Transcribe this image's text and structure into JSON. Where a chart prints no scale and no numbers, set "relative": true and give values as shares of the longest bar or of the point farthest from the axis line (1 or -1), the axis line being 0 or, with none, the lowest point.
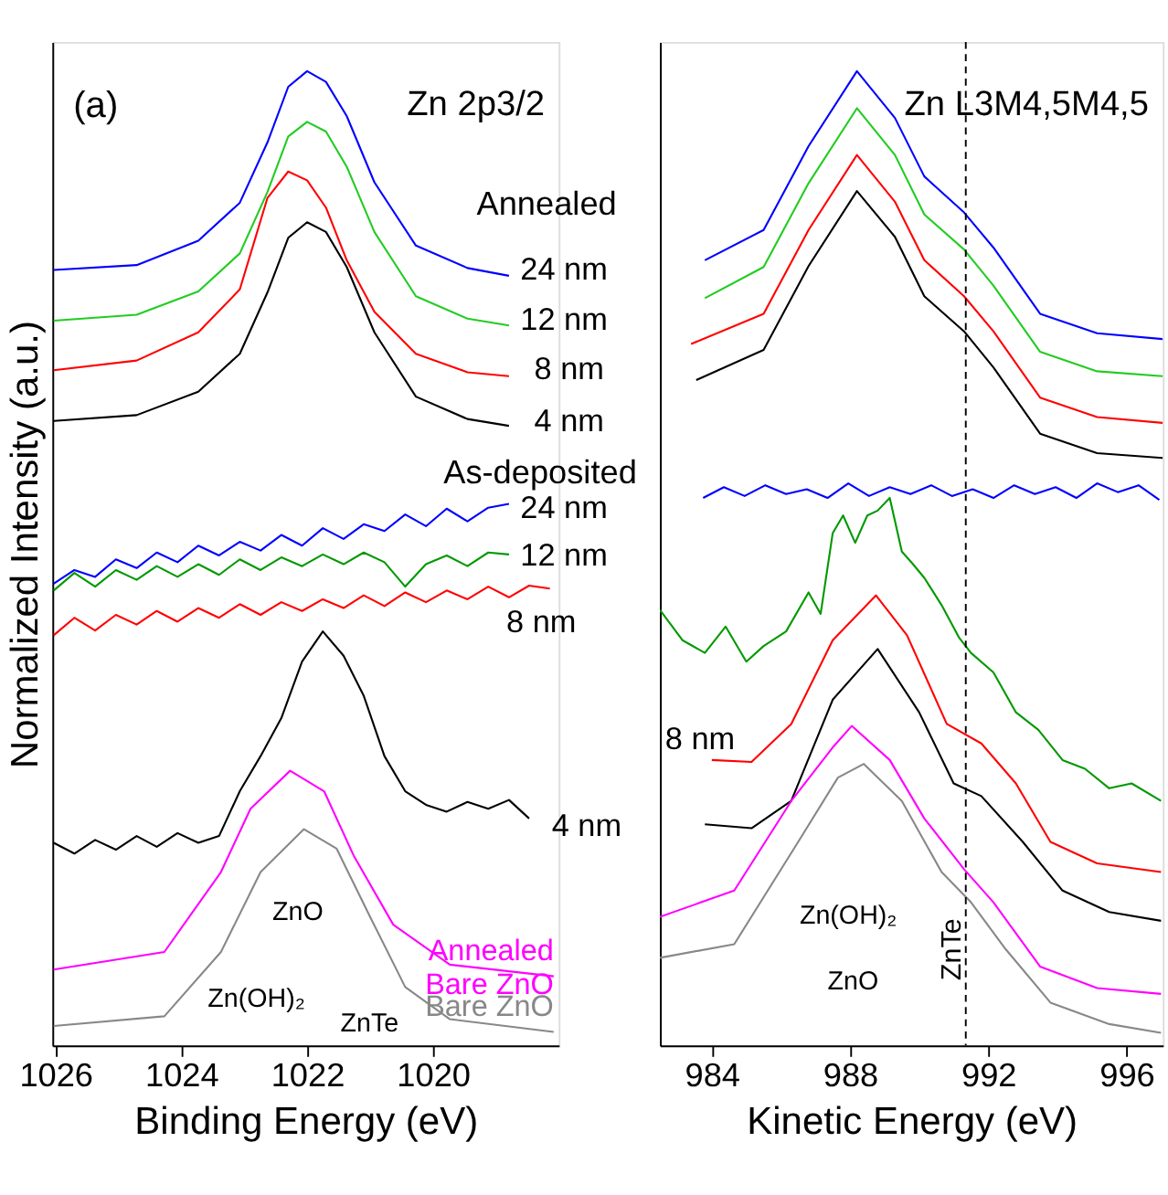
{
  "chart_data": [
    {
      "type": "line",
      "relative": true,
      "title": "Zn 2p3/2",
      "xlabel": "Binding Energy (eV)",
      "ylabel": "Normalized Intensity (a.u.)",
      "xlim": [
        1026.05,
        1018.0
      ],
      "xticks": [
        1026,
        1024,
        1022,
        1020
      ],
      "series": [
        {
          "color": "#0000ff",
          "x": [
            1026.03,
            1024.71,
            1023.73,
            1023.07,
            1022.63,
            1022.3,
            1022.0,
            1021.7,
            1021.37,
            1020.93,
            1020.27,
            1019.45,
            1018.79
          ],
          "values": [
            0.796,
            0.801,
            0.826,
            0.865,
            0.927,
            0.984,
            1.0,
            0.989,
            0.954,
            0.886,
            0.821,
            0.798,
            0.79
          ]
        },
        {
          "color": "#22cc22",
          "x": [
            1026.03,
            1024.71,
            1023.73,
            1023.07,
            1022.63,
            1022.3,
            1022.0,
            1021.7,
            1021.37,
            1020.93,
            1020.27,
            1019.45,
            1018.79
          ],
          "values": [
            0.744,
            0.75,
            0.774,
            0.813,
            0.876,
            0.933,
            0.948,
            0.938,
            0.902,
            0.835,
            0.769,
            0.746,
            0.739
          ]
        },
        {
          "color": "#ff0000",
          "x": [
            1026.03,
            1024.71,
            1023.73,
            1023.07,
            1022.63,
            1022.3,
            1022.0,
            1021.7,
            1021.37,
            1020.93,
            1020.27,
            1019.45,
            1018.79
          ],
          "values": [
            0.693,
            0.703,
            0.732,
            0.776,
            0.87,
            0.897,
            0.888,
            0.86,
            0.806,
            0.753,
            0.71,
            0.691,
            0.687
          ]
        },
        {
          "color": "#000000",
          "x": [
            1026.03,
            1024.71,
            1023.73,
            1023.07,
            1022.63,
            1022.3,
            1022.0,
            1021.7,
            1021.37,
            1020.93,
            1020.27,
            1019.45,
            1018.79
          ],
          "values": [
            0.641,
            0.647,
            0.671,
            0.71,
            0.773,
            0.829,
            0.845,
            0.835,
            0.799,
            0.732,
            0.666,
            0.643,
            0.636
          ]
        },
        {
          "color": "#0000ff",
          "x": [
            1026.03,
            1025.7,
            1025.37,
            1025.04,
            1024.71,
            1024.39,
            1024.06,
            1023.73,
            1023.4,
            1023.07,
            1022.74,
            1022.41,
            1022.08,
            1021.75,
            1021.42,
            1021.1,
            1020.77,
            1020.44,
            1020.11,
            1019.78,
            1019.45,
            1019.12,
            1018.79
          ],
          "values": [
            0.474,
            0.488,
            0.481,
            0.499,
            0.49,
            0.506,
            0.496,
            0.513,
            0.503,
            0.517,
            0.508,
            0.524,
            0.513,
            0.531,
            0.52,
            0.535,
            0.528,
            0.545,
            0.533,
            0.551,
            0.538,
            0.552,
            0.556
          ]
        },
        {
          "color": "#009900",
          "x": [
            1026.03,
            1025.7,
            1025.37,
            1025.04,
            1024.71,
            1024.39,
            1024.06,
            1023.73,
            1023.4,
            1023.07,
            1022.74,
            1022.41,
            1022.08,
            1021.75,
            1021.42,
            1021.1,
            1020.77,
            1020.44,
            1020.11,
            1019.78,
            1019.45,
            1019.12,
            1018.79
          ],
          "values": [
            0.467,
            0.485,
            0.471,
            0.488,
            0.478,
            0.492,
            0.481,
            0.494,
            0.483,
            0.499,
            0.488,
            0.501,
            0.492,
            0.504,
            0.494,
            0.506,
            0.496,
            0.471,
            0.494,
            0.503,
            0.492,
            0.506,
            0.504
          ]
        },
        {
          "color": "#ff0000",
          "x": [
            1026.03,
            1025.7,
            1025.37,
            1025.04,
            1024.71,
            1024.39,
            1024.06,
            1023.73,
            1023.4,
            1023.07,
            1022.74,
            1022.41,
            1022.08,
            1021.75,
            1021.42,
            1021.1,
            1020.77,
            1020.44,
            1020.11,
            1019.78,
            1019.45,
            1019.12,
            1018.79,
            1018.47,
            1018.14
          ],
          "values": [
            0.421,
            0.439,
            0.426,
            0.442,
            0.432,
            0.446,
            0.435,
            0.449,
            0.439,
            0.453,
            0.442,
            0.455,
            0.446,
            0.458,
            0.449,
            0.462,
            0.451,
            0.465,
            0.455,
            0.467,
            0.458,
            0.471,
            0.46,
            0.472,
            0.469
          ]
        },
        {
          "color": "#000000",
          "x": [
            1026.03,
            1025.7,
            1025.37,
            1025.04,
            1024.71,
            1024.39,
            1024.06,
            1023.73,
            1023.4,
            1023.07,
            1022.74,
            1022.41,
            1022.08,
            1021.75,
            1021.42,
            1021.1,
            1020.77,
            1020.44,
            1020.11,
            1019.78,
            1019.45,
            1019.12,
            1018.79,
            1018.47
          ],
          "values": [
            0.208,
            0.197,
            0.211,
            0.201,
            0.215,
            0.204,
            0.218,
            0.208,
            0.215,
            0.261,
            0.297,
            0.336,
            0.394,
            0.425,
            0.4,
            0.359,
            0.297,
            0.261,
            0.247,
            0.24,
            0.25,
            0.243,
            0.252,
            0.233
          ]
        },
        {
          "name": "Annealed\nBare ZnO",
          "color": "#ff00ff",
          "x": [
            1026.03,
            1024.27,
            1023.37,
            1022.9,
            1022.27,
            1021.73,
            1021.26,
            1020.63,
            1019.73,
            1018.08
          ],
          "values": [
            0.078,
            0.096,
            0.178,
            0.243,
            0.282,
            0.261,
            0.195,
            0.124,
            0.083,
            0.071
          ]
        },
        {
          "name": "Bare ZnO",
          "color": "#888888",
          "x": [
            1026.03,
            1024.27,
            1023.37,
            1022.74,
            1022.05,
            1021.53,
            1020.99,
            1020.44,
            1019.73,
            1018.08
          ],
          "values": [
            0.02,
            0.03,
            0.096,
            0.178,
            0.222,
            0.202,
            0.131,
            0.06,
            0.027,
            0.014
          ]
        }
      ],
      "annotations": [
        "(a)",
        "Annealed",
        "24 nm",
        "12 nm",
        "8 nm",
        "4 nm",
        "As-deposited",
        "24 nm",
        "12 nm",
        "8 nm",
        "4 nm",
        "ZnO",
        "Zn(OH)₂",
        "ZnTe"
      ]
    },
    {
      "type": "line",
      "relative": true,
      "title": "Zn L3M4,5M4,5",
      "xlabel": "Kinetic Energy (eV)",
      "xlim": [
        982.5,
        997.05
      ],
      "xticks": [
        984,
        988,
        992,
        996
      ],
      "series": [
        {
          "color": "#0000ff",
          "x": [
            983.8,
            985.5,
            986.8,
            988.2,
            989.3,
            990.15,
            991.3,
            992.15,
            993.5,
            995.15,
            997.05
          ],
          "values": [
            0.806,
            0.837,
            0.923,
            1.0,
            0.952,
            0.892,
            0.855,
            0.819,
            0.751,
            0.731,
            0.725
          ]
        },
        {
          "color": "#22cc22",
          "x": [
            983.8,
            985.5,
            986.8,
            988.2,
            989.3,
            990.15,
            991.3,
            992.15,
            993.5,
            995.15,
            997.05
          ],
          "values": [
            0.767,
            0.799,
            0.885,
            0.962,
            0.914,
            0.853,
            0.817,
            0.78,
            0.712,
            0.692,
            0.687
          ]
        },
        {
          "color": "#ff0000",
          "x": [
            983.4,
            985.5,
            986.8,
            988.2,
            989.3,
            990.15,
            991.3,
            992.15,
            993.5,
            995.15,
            997.05
          ],
          "values": [
            0.72,
            0.751,
            0.837,
            0.914,
            0.866,
            0.806,
            0.769,
            0.733,
            0.665,
            0.645,
            0.639
          ]
        },
        {
          "color": "#000000",
          "x": [
            983.55,
            985.5,
            986.8,
            988.2,
            989.3,
            990.15,
            991.3,
            992.15,
            993.5,
            995.15,
            997.05
          ],
          "values": [
            0.683,
            0.714,
            0.8,
            0.877,
            0.83,
            0.769,
            0.733,
            0.696,
            0.628,
            0.608,
            0.603
          ]
        },
        {
          "color": "#0000ff",
          "x": [
            983.75,
            984.35,
            984.95,
            985.55,
            986.15,
            986.75,
            987.35,
            987.95,
            988.55,
            989.15,
            989.75,
            990.35,
            990.95,
            991.55,
            992.15,
            992.75,
            993.35,
            993.95,
            994.55,
            995.15,
            995.75,
            996.35,
            996.95
          ],
          "values": [
            0.562,
            0.573,
            0.564,
            0.575,
            0.566,
            0.571,
            0.562,
            0.577,
            0.564,
            0.573,
            0.566,
            0.575,
            0.564,
            0.571,
            0.562,
            0.575,
            0.566,
            0.573,
            0.562,
            0.577,
            0.568,
            0.575,
            0.56
          ]
        },
        {
          "color": "#009900",
          "x": [
            982.5,
            983.15,
            983.8,
            984.4,
            985.0,
            985.5,
            986.15,
            986.8,
            987.15,
            987.5,
            987.8,
            988.15,
            988.5,
            988.8,
            989.15,
            989.5,
            989.8,
            990.15,
            990.65,
            991.15,
            991.5,
            992.15,
            992.8,
            993.45,
            994.15,
            994.8,
            995.5,
            996.15,
            997.0
          ],
          "values": [
            0.447,
            0.416,
            0.403,
            0.43,
            0.394,
            0.41,
            0.425,
            0.465,
            0.443,
            0.526,
            0.544,
            0.516,
            0.544,
            0.549,
            0.562,
            0.507,
            0.495,
            0.48,
            0.452,
            0.419,
            0.403,
            0.383,
            0.342,
            0.324,
            0.293,
            0.284,
            0.264,
            0.269,
            0.251
          ]
        },
        {
          "color": "#ff0000",
          "x": [
            984.0,
            985.15,
            986.3,
            987.5,
            988.75,
            989.65,
            990.8,
            991.8,
            992.8,
            993.8,
            995.15,
            997.0
          ],
          "values": [
            0.293,
            0.291,
            0.33,
            0.416,
            0.462,
            0.421,
            0.33,
            0.31,
            0.269,
            0.209,
            0.187,
            0.178
          ]
        },
        {
          "color": "#000000",
          "x": [
            983.8,
            985.15,
            986.3,
            987.5,
            988.8,
            990.0,
            991.0,
            991.8,
            993.0,
            994.15,
            995.5,
            997.0
          ],
          "values": [
            0.227,
            0.223,
            0.251,
            0.355,
            0.407,
            0.342,
            0.269,
            0.256,
            0.209,
            0.159,
            0.137,
            0.128
          ]
        },
        {
          "color": "#ff00ff",
          "x": [
            982.5,
            984.65,
            986.3,
            987.5,
            988.05,
            989.15,
            990.15,
            991.3,
            992.15,
            993.5,
            995.15,
            997.0
          ],
          "values": [
            0.132,
            0.159,
            0.251,
            0.306,
            0.328,
            0.293,
            0.233,
            0.181,
            0.147,
            0.081,
            0.059,
            0.053
          ]
        },
        {
          "color": "#888888",
          "x": [
            982.5,
            984.65,
            986.5,
            987.65,
            988.4,
            989.5,
            990.65,
            991.5,
            992.5,
            993.8,
            995.5,
            997.0
          ],
          "values": [
            0.09,
            0.104,
            0.209,
            0.275,
            0.289,
            0.251,
            0.178,
            0.147,
            0.099,
            0.044,
            0.022,
            0.013
          ]
        }
      ],
      "ref_lines": [
        {
          "axis": "x",
          "value": 991.35,
          "label": "ZnTe",
          "line_style": "dashed",
          "color": "#000000"
        }
      ],
      "annotations": [
        "8 nm",
        "Zn(OH)₂",
        "ZnO"
      ]
    }
  ]
}
